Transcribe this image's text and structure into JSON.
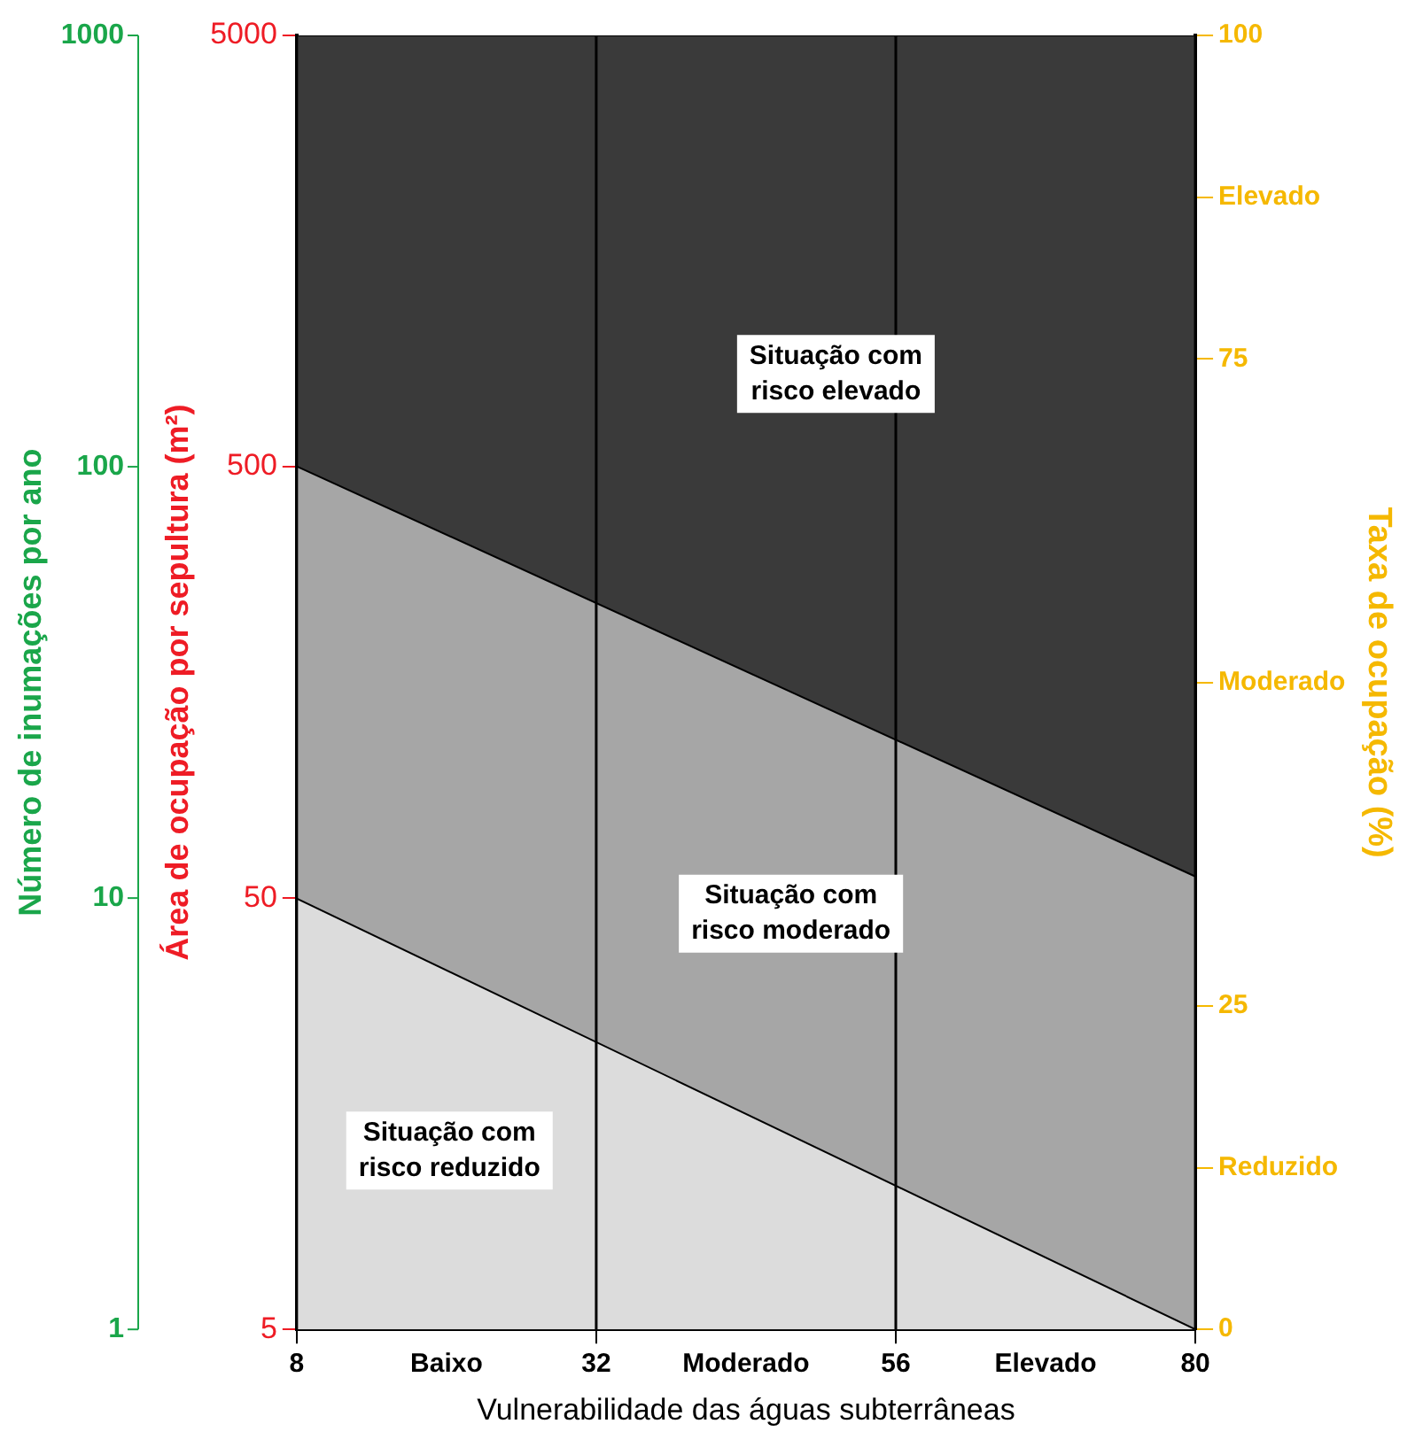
{
  "chart_data": {
    "type": "area",
    "xlabel": "Vulnerabilidade das águas subterrâneas",
    "ylabel": "Área de ocupação por sepultura (m²)",
    "y2label": "Taxa de ocupação (%)",
    "annotations": [
      "Número de inumações por ano",
      "1",
      "10",
      "100",
      "1000"
    ],
    "x": [
      8,
      80
    ],
    "xlim": [
      8,
      80
    ],
    "xticks": [
      8,
      {
        "value": 20,
        "label": "Baixo"
      },
      32,
      {
        "value": 44,
        "label": "Moderado"
      },
      56,
      {
        "value": 68,
        "label": "Elevado"
      },
      80
    ],
    "ylim": [
      5,
      5000
    ],
    "yticks": [
      5,
      50,
      500,
      5000
    ],
    "y2lim": [
      0,
      100
    ],
    "y2ticks": [
      0,
      {
        "value": 12.5,
        "label": "Reduzido"
      },
      25,
      {
        "value": 50,
        "label": "Moderado"
      },
      75,
      {
        "value": 87.5,
        "label": "Elevado"
      },
      100
    ],
    "log": true,
    "grid": "x",
    "legend": false,
    "stacked": true,
    "series": [
      {
        "name": "Situação com risco reduzido",
        "color": "#dcdcdc",
        "axis": "y2",
        "values": [
          33.3,
          0
        ]
      },
      {
        "name": "Situação com risco moderado",
        "color": "#a6a6a6",
        "axis": "y2",
        "values": [
          33.4,
          35
        ]
      },
      {
        "name": "Situação com risco elevado",
        "color": "#3a3a3a",
        "axis": "y2",
        "values": [
          33.3,
          65
        ]
      }
    ]
  }
}
